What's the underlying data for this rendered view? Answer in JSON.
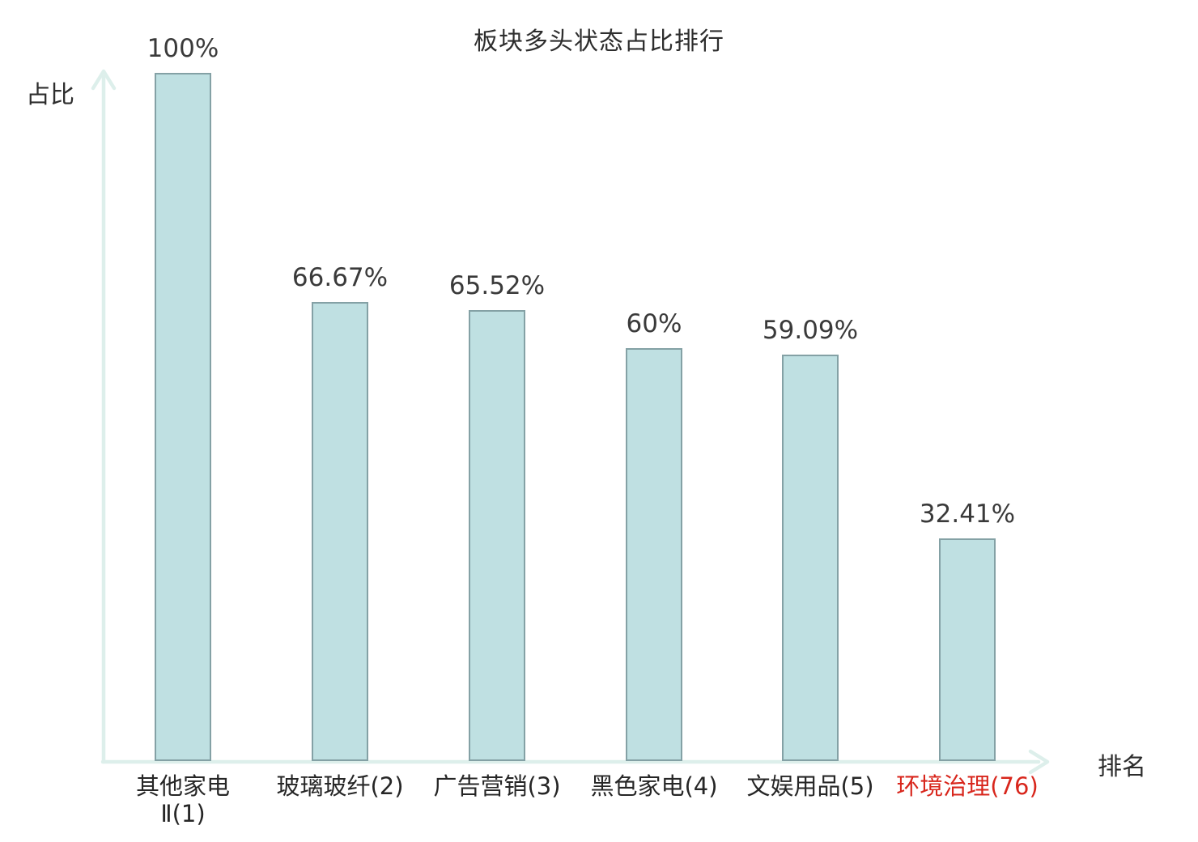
{
  "chart_data": {
    "type": "bar",
    "title": "板块多头状态占比排行",
    "xlabel": "排名",
    "ylabel": "占比",
    "categories": [
      "其他家电\nⅡ(1)",
      "玻璃玻纤(2)",
      "广告营销(3)",
      "黑色家电(4)",
      "文娱用品(5)",
      "环境治理(76)"
    ],
    "values": [
      100,
      66.67,
      65.52,
      60,
      59.09,
      32.41
    ],
    "value_labels": [
      "100%",
      "66.67%",
      "65.52%",
      "60%",
      "59.09%",
      "32.41%"
    ],
    "ylim": [
      0,
      100
    ],
    "grid": false,
    "legend": "none",
    "highlighted_category_index": 5,
    "colors": {
      "bar_fill": "#bfe0e2",
      "bar_border": "#84a1a5",
      "axis": "#ddefeb",
      "highlight": "#d8261c",
      "text": "#2d2d2d"
    }
  }
}
